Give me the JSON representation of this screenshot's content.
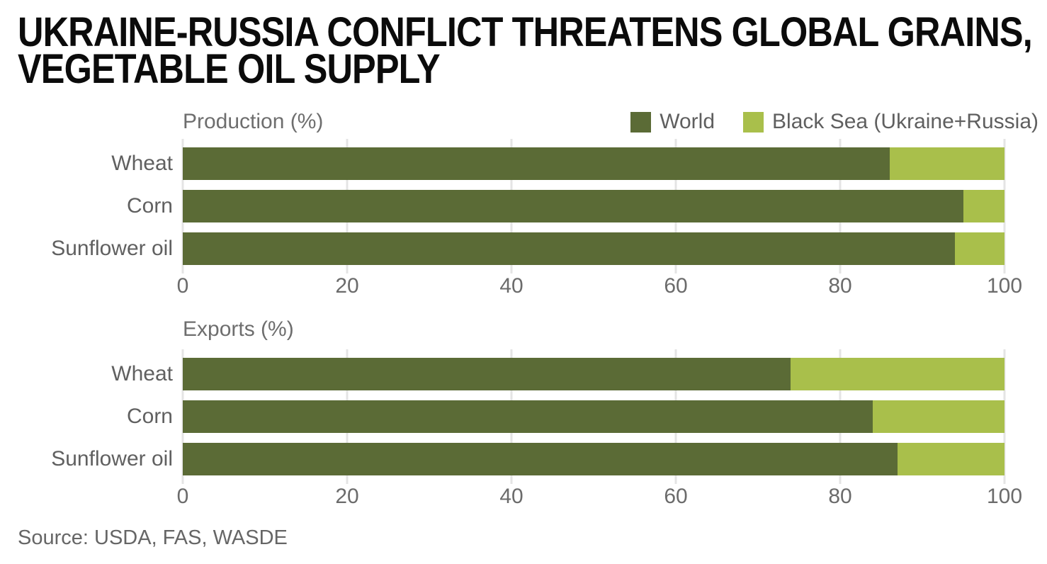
{
  "title": {
    "line1": "UKRAINE-RUSSIA CONFLICT THREATENS GLOBAL GRAINS,",
    "line2": "VEGETABLE OIL SUPPLY"
  },
  "legend": {
    "items": [
      {
        "label": "World",
        "color": "#5b6b36"
      },
      {
        "label": "Black Sea (Ukraine+Russia)",
        "color": "#a9bf4b"
      }
    ]
  },
  "source": "Source: USDA, FAS, WASDE",
  "colors": {
    "world": "#5b6b36",
    "black_sea": "#a9bf4b",
    "title_text": "#0b0b0b",
    "label_text": "#606060",
    "axis_text": "#6b6b6b",
    "gridline": "#e4e4e4",
    "background": "#ffffff"
  },
  "chart_data": [
    {
      "type": "bar",
      "orientation": "horizontal",
      "stacked": true,
      "title": "Production (%)",
      "categories": [
        "Wheat",
        "Corn",
        "Sunflower oil"
      ],
      "series": [
        {
          "name": "World",
          "color": "#5b6b36",
          "values": [
            86,
            95,
            94
          ]
        },
        {
          "name": "Black Sea (Ukraine+Russia)",
          "color": "#a9bf4b",
          "values": [
            14,
            5,
            6
          ]
        }
      ],
      "xlim": [
        0,
        100
      ],
      "xticks": [
        0,
        20,
        40,
        60,
        80,
        100
      ],
      "grid": true,
      "legend_position": "top-right"
    },
    {
      "type": "bar",
      "orientation": "horizontal",
      "stacked": true,
      "title": "Exports (%)",
      "categories": [
        "Wheat",
        "Corn",
        "Sunflower oil"
      ],
      "series": [
        {
          "name": "World",
          "color": "#5b6b36",
          "values": [
            74,
            84,
            87
          ]
        },
        {
          "name": "Black Sea (Ukraine+Russia)",
          "color": "#a9bf4b",
          "values": [
            26,
            16,
            13
          ]
        }
      ],
      "xlim": [
        0,
        100
      ],
      "xticks": [
        0,
        20,
        40,
        60,
        80,
        100
      ],
      "grid": true,
      "legend_position": "none"
    }
  ]
}
